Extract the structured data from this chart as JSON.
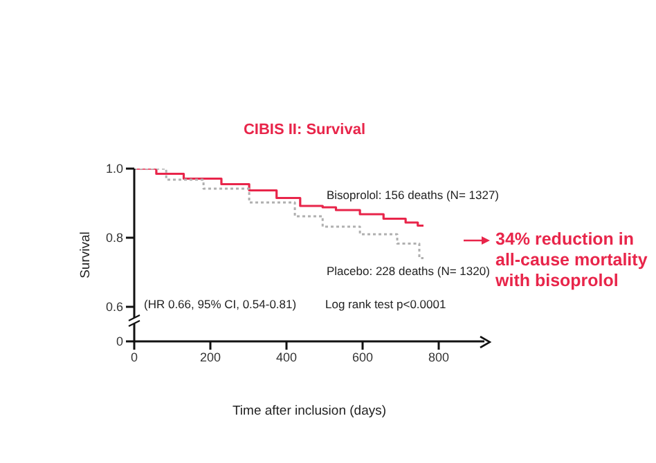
{
  "chart_data": {
    "type": "step",
    "title": "CIBIS II: Survival",
    "xlabel": "Time after inclusion (days)",
    "ylabel": "Survival",
    "series": [
      {
        "name": "Bisoprolol: 156 deaths (N= 1327)",
        "color": "#e8254a",
        "line_style": "solid",
        "x": [
          0,
          58,
          130,
          229,
          302,
          374,
          436,
          495,
          530,
          593,
          655,
          713,
          745,
          760
        ],
        "values": [
          1.0,
          0.985,
          0.971,
          0.955,
          0.937,
          0.915,
          0.892,
          0.888,
          0.88,
          0.868,
          0.855,
          0.844,
          0.835,
          0.835
        ]
      },
      {
        "name": "Placebo: 228 deaths (N= 1320)",
        "color": "#b0b0b0",
        "line_style": "dotted",
        "x": [
          0,
          84,
          182,
          302,
          422,
          495,
          593,
          691,
          749,
          760
        ],
        "values": [
          1.0,
          0.968,
          0.942,
          0.902,
          0.862,
          0.832,
          0.81,
          0.783,
          0.741,
          0.741
        ]
      }
    ],
    "xlim": [
      0,
      920
    ],
    "xticks": [
      0,
      200,
      400,
      600,
      800
    ],
    "ylim": [
      0.5,
      1.0
    ],
    "yticks": [
      {
        "value": 0.5,
        "label": "0"
      },
      0.6,
      0.8,
      {
        "value": 1,
        "label": "1.0"
      }
    ],
    "marker": "none",
    "grid": false,
    "legend": false,
    "annotations": [
      "(HR 0.66, 95% CI, 0.54-0.81)",
      "Log rank test p<0.0001",
      "34% reduction in all-cause mortality with bisoprolol"
    ]
  }
}
